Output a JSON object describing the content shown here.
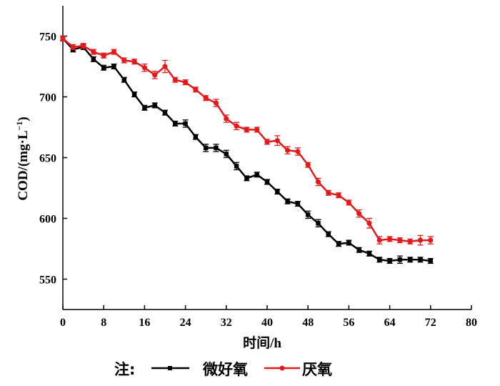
{
  "chart_data": {
    "type": "line",
    "xlabel": "时间/h",
    "ylabel": "COD/(mg·L",
    "ylabel_sup": "−1",
    "ylabel_close": ")",
    "xlim": [
      0,
      80
    ],
    "ylim": [
      525,
      775
    ],
    "xticks": [
      0,
      8,
      16,
      24,
      32,
      40,
      48,
      56,
      64,
      72,
      80
    ],
    "yticks": [
      550,
      600,
      650,
      700,
      750
    ],
    "grid": false,
    "legend": {
      "prefix": "注:",
      "placement": "bottom"
    },
    "series": [
      {
        "name": "微好氧",
        "color": "#000000",
        "marker": "square",
        "points": [
          [
            0,
            748,
            2
          ],
          [
            2,
            739,
            2
          ],
          [
            4,
            741,
            2
          ],
          [
            6,
            731,
            2
          ],
          [
            8,
            724,
            2
          ],
          [
            10,
            725,
            2
          ],
          [
            12,
            714,
            2
          ],
          [
            14,
            702,
            2
          ],
          [
            16,
            691,
            2
          ],
          [
            18,
            693,
            2
          ],
          [
            20,
            687,
            2
          ],
          [
            22,
            678,
            2
          ],
          [
            24,
            678,
            3
          ],
          [
            26,
            667,
            2
          ],
          [
            28,
            658,
            3
          ],
          [
            30,
            658,
            3
          ],
          [
            32,
            653,
            3
          ],
          [
            34,
            643,
            3
          ],
          [
            36,
            633,
            2
          ],
          [
            38,
            636,
            2
          ],
          [
            40,
            630,
            2
          ],
          [
            42,
            622,
            2
          ],
          [
            44,
            614,
            2
          ],
          [
            46,
            612,
            2
          ],
          [
            48,
            603,
            3
          ],
          [
            50,
            596,
            3
          ],
          [
            52,
            587,
            2
          ],
          [
            54,
            579,
            2
          ],
          [
            56,
            580,
            2
          ],
          [
            58,
            574,
            2
          ],
          [
            60,
            571,
            2
          ],
          [
            62,
            566,
            2
          ],
          [
            64,
            565,
            2
          ],
          [
            66,
            566,
            3
          ],
          [
            68,
            566,
            2
          ],
          [
            70,
            566,
            2
          ],
          [
            72,
            565,
            2
          ]
        ]
      },
      {
        "name": "厌氧",
        "color": "#e31a1c",
        "marker": "circle",
        "points": [
          [
            0,
            748,
            2
          ],
          [
            2,
            741,
            2
          ],
          [
            4,
            742,
            2
          ],
          [
            6,
            737,
            2
          ],
          [
            8,
            734,
            2
          ],
          [
            10,
            737,
            2
          ],
          [
            12,
            730,
            2
          ],
          [
            14,
            729,
            2
          ],
          [
            16,
            724,
            3
          ],
          [
            18,
            718,
            3
          ],
          [
            20,
            725,
            5
          ],
          [
            22,
            714,
            2
          ],
          [
            24,
            712,
            2
          ],
          [
            26,
            706,
            2
          ],
          [
            28,
            699,
            2
          ],
          [
            30,
            695,
            3
          ],
          [
            32,
            682,
            3
          ],
          [
            34,
            676,
            3
          ],
          [
            36,
            673,
            2
          ],
          [
            38,
            673,
            2
          ],
          [
            40,
            663,
            2
          ],
          [
            42,
            664,
            4
          ],
          [
            44,
            656,
            3
          ],
          [
            46,
            655,
            3
          ],
          [
            48,
            644,
            2
          ],
          [
            50,
            630,
            3
          ],
          [
            52,
            621,
            2
          ],
          [
            54,
            619,
            2
          ],
          [
            56,
            613,
            2
          ],
          [
            58,
            604,
            3
          ],
          [
            60,
            596,
            4
          ],
          [
            62,
            582,
            3
          ],
          [
            64,
            583,
            2
          ],
          [
            66,
            582,
            2
          ],
          [
            68,
            581,
            2
          ],
          [
            70,
            582,
            4
          ],
          [
            72,
            582,
            3
          ]
        ]
      }
    ]
  }
}
